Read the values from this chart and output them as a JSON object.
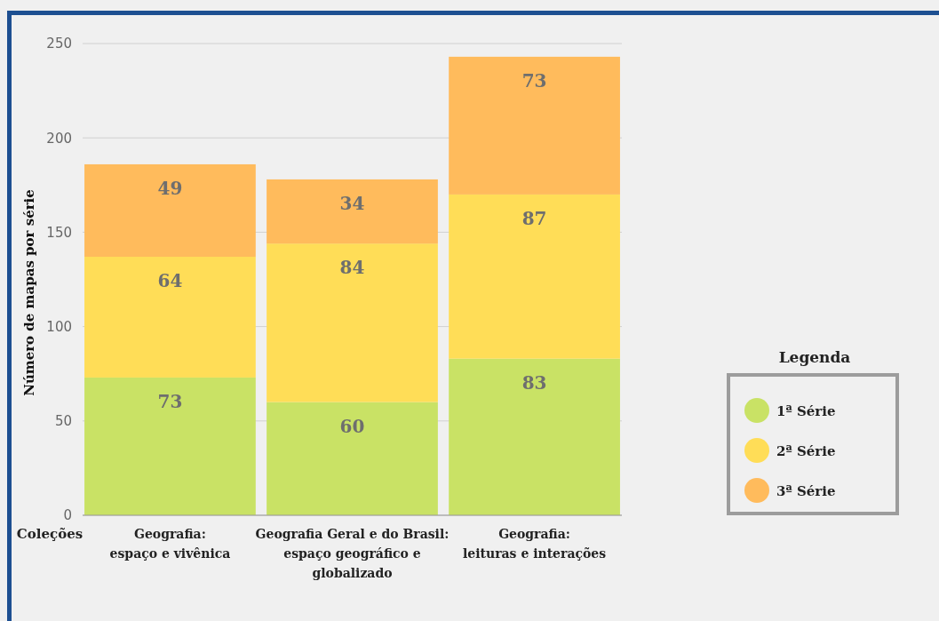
{
  "chart_data": {
    "type": "bar",
    "stacked": true,
    "xlabel": "Coleções",
    "ylabel": "Número de mapas por série",
    "legend_title": "Legenda",
    "legend": "right",
    "categories": [
      "Geografia:\nespaço e vivênica",
      "Geografia Geral e do Brasil:\nespaço geográfico e\nglobalizado",
      "Geografia:\nleituras e interações"
    ],
    "series": [
      {
        "name": "1ª Série",
        "color": "#c9e265",
        "values": [
          73,
          60,
          83
        ]
      },
      {
        "name": "2ª Série",
        "color": "#ffdd57",
        "values": [
          64,
          84,
          87
        ]
      },
      {
        "name": "3ª Série",
        "color": "#ffbb5c",
        "values": [
          49,
          34,
          73
        ]
      }
    ],
    "ylim": [
      0,
      250
    ],
    "yticks": [
      0,
      50,
      100,
      150,
      200,
      250
    ],
    "grid": "y",
    "data_labels": true
  }
}
